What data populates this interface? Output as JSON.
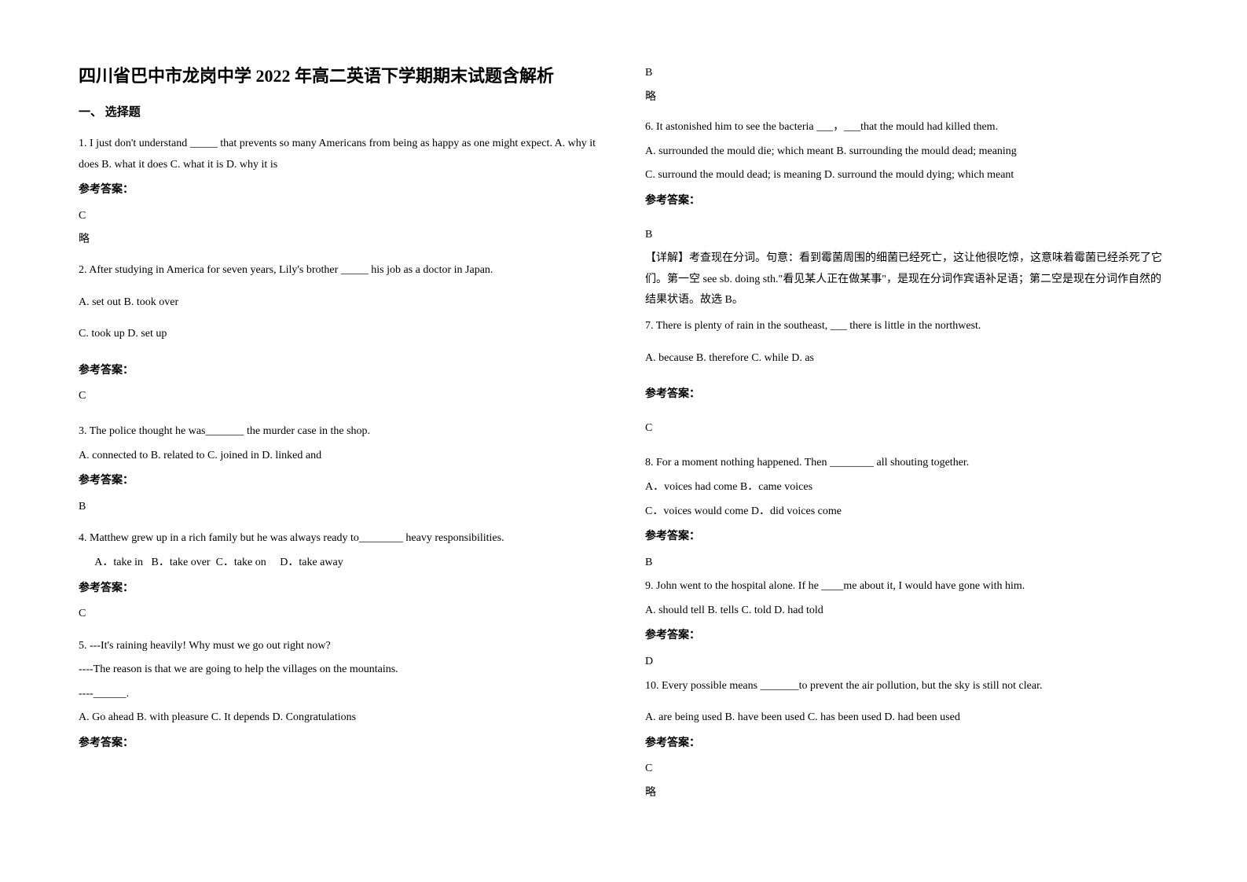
{
  "title": "四川省巴中市龙岗中学 2022 年高二英语下学期期末试题含解析",
  "section1_title": "一、 选择题",
  "q1": {
    "text": "1. I just don't understand _____ that prevents so many Americans from being as happy as one might expect. A. why it does          B. what it does       C. what it is      D. why it is",
    "answer_label": "参考答案：",
    "answer": "C",
    "note": "略"
  },
  "q2": {
    "text": "2. After studying in America for seven years, Lily's brother _____ his job as a doctor in Japan.",
    "options_a": "A. set out         B. took over",
    "options_b": "C. took up          D. set up",
    "answer_label": "参考答案：",
    "answer": "C"
  },
  "q3": {
    "text": "3. The police thought he was_______ the murder case in the shop.",
    "options": "A. connected to   B. related to   C. joined in    D. linked and",
    "answer_label": "参考答案：",
    "answer": "B"
  },
  "q4": {
    "text": "4. Matthew grew up in a rich family but he was always ready to________ heavy responsibilities.",
    "options": "      A．take in   B．take over  C．take on     D．take away",
    "answer_label": "参考答案：",
    "answer": "C"
  },
  "q5": {
    "line1": "5. ---It's raining heavily! Why must we go out right now?",
    "line2": "  ----The reason is that we are going to help the villages on the mountains.",
    "line3": "  ----______.",
    "options": "  A. Go ahead    B. with pleasure    C. It depends      D. Congratulations",
    "answer_label": "参考答案：",
    "answer": "B",
    "note": "略"
  },
  "q6": {
    "text": "6. It astonished him to see the bacteria ___，___that the mould had killed them.",
    "opt_a": "A. surrounded the mould die; which meant   B. surrounding the mould dead; meaning",
    "opt_b": "C. surround the mould dead; is meaning   D. surround the mould dying; which meant",
    "answer_label": "参考答案：",
    "answer": "B",
    "explanation": "【详解】考查现在分词。句意：看到霉菌周围的细菌已经死亡，这让他很吃惊，这意味着霉菌已经杀死了它们。第一空 see sb. doing sth.\"看见某人正在做某事\"，是现在分词作宾语补足语；第二空是现在分词作自然的结果状语。故选 B。"
  },
  "q7": {
    "text": "7. There is plenty of rain in the southeast, ___ there is little in the northwest.",
    "options": "A. because      B. therefore      C. while            D. as",
    "answer_label": "参考答案：",
    "answer": "C"
  },
  "q8": {
    "text": "8. For a moment nothing happened. Then ________ all shouting together.",
    "opt_a": "A．voices had come    B．came voices",
    "opt_b": "C．voices would come   D．did voices come",
    "answer_label": "参考答案：",
    "answer": "B"
  },
  "q9": {
    "text": "9. John went to the hospital alone. If he ____me about it, I would have gone with him.",
    "options": "A. should tell    B. tells    C. told       D. had told",
    "answer_label": "参考答案：",
    "answer": "D"
  },
  "q10": {
    "text": "10. Every possible means _______to prevent the air pollution, but the sky is still not clear.",
    "options": "A. are being used    B. have been used      C. has been used    D. had been used",
    "answer_label": "参考答案：",
    "answer": "C",
    "note": "略"
  }
}
